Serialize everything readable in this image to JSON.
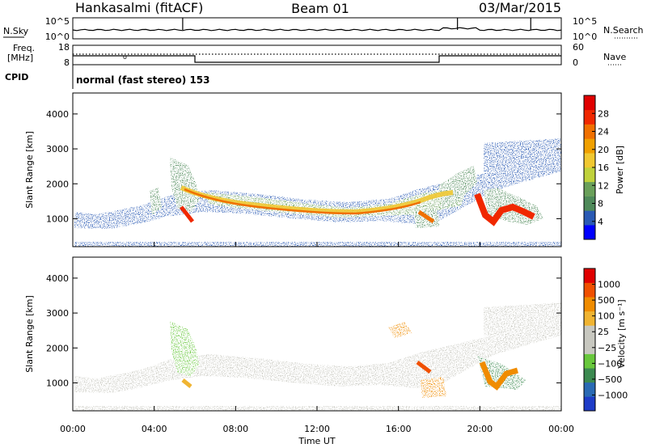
{
  "header": {
    "station": "Hankasalmi (fitACF)",
    "beam": "Beam 01",
    "date": "03/Mar/2015"
  },
  "colors": {
    "scatter_fill": "#c8c8c0",
    "power_scale": [
      "#0000ff",
      "#2a5ab4",
      "#4f8a5a",
      "#6aa05a",
      "#c0d23c",
      "#f0c832",
      "#f0a000",
      "#f07000",
      "#f02800",
      "#e00000"
    ],
    "velocity_scale": [
      "#1e3cc8",
      "#2a6ab4",
      "#3c8a50",
      "#68c83c",
      "#c8c8c0",
      "#c8c8c0",
      "#f0b432",
      "#f08c00",
      "#f05000",
      "#e00000"
    ]
  },
  "chart_data": [
    {
      "type": "line",
      "panel": "noise",
      "left_label": "N.Sky",
      "right_label": "N.Search",
      "left_ticks": [
        "10^5",
        "10^0"
      ],
      "right_ticks": [
        "10^5",
        "10^0"
      ],
      "x_range_hours": [
        0,
        24
      ],
      "spikes_hours": [
        5.4,
        18.9,
        22.5
      ]
    },
    {
      "type": "line",
      "panel": "frequency",
      "left_label_1": "Freq.",
      "left_label_2": "[MHz]",
      "right_label": "Nave",
      "left_ticks": [
        "18",
        "8"
      ],
      "right_ticks": [
        "60",
        "0"
      ],
      "nave_steps": [
        {
          "from_hour": 0,
          "to_hour": 6,
          "level": "high"
        },
        {
          "from_hour": 6,
          "to_hour": 18,
          "level": "low"
        },
        {
          "from_hour": 18,
          "to_hour": 24,
          "level": "high"
        }
      ]
    },
    {
      "type": "text",
      "panel": "cpid",
      "label": "CPID",
      "value": "normal (fast stereo) 153"
    },
    {
      "type": "heatmap",
      "panel": "power",
      "ylabel": "Slant Range [km]",
      "yticks": [
        "4000",
        "3000",
        "2000",
        "1000"
      ],
      "ylim": [
        200,
        4600
      ],
      "colorbar_label": "Power [dB]",
      "colorbar_ticks": [
        "28",
        "24",
        "20",
        "16",
        "12",
        "8",
        "4"
      ],
      "colorbar_range": [
        0,
        32
      ]
    },
    {
      "type": "heatmap",
      "panel": "velocity",
      "ylabel": "Slant Range [km]",
      "yticks": [
        "4000",
        "3000",
        "2000",
        "1000"
      ],
      "ylim": [
        200,
        4600
      ],
      "colorbar_label": "Velocity [m s⁻¹]",
      "colorbar_ticks": [
        "1000",
        "500",
        "100",
        "25",
        "−25",
        "−100",
        "−500",
        "−1000"
      ]
    },
    {
      "type": "axis",
      "panel": "time",
      "xlabel": "Time UT",
      "xticks": [
        "00:00",
        "04:00",
        "08:00",
        "12:00",
        "16:00",
        "20:00",
        "00:00"
      ],
      "x_range_hours": [
        0,
        24
      ]
    }
  ]
}
